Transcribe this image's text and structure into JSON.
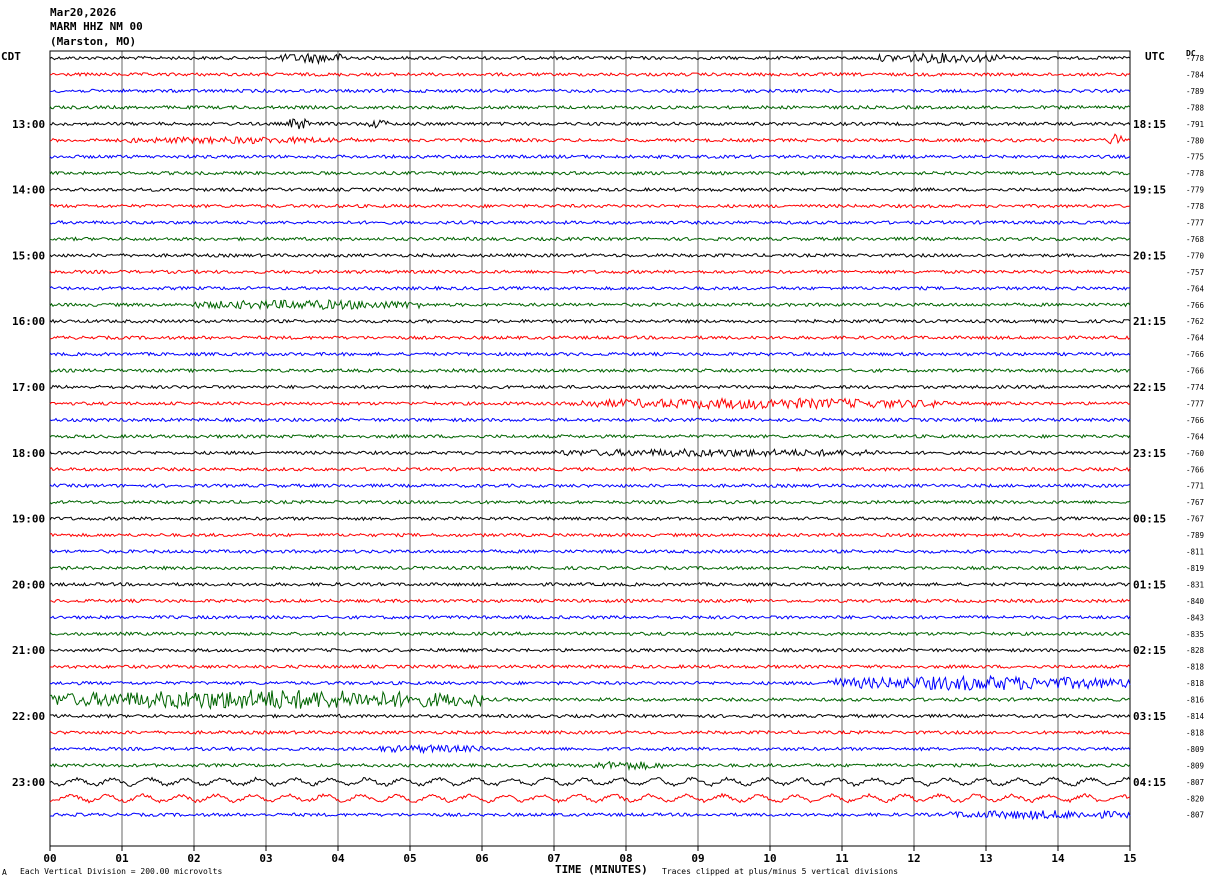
{
  "header": {
    "date": "Mar20,2026",
    "station": "MARM HHZ NM 00",
    "location": "(Marston, MO)"
  },
  "left_zone_label": "CDT",
  "right_zone_label": "UTC",
  "dc_label": "DC",
  "footer": {
    "scale": "Each Vertical Division =  200.00 microvolts",
    "clip": "Traces clipped at plus/minus 5 vertical divisions",
    "corner_mark": "A"
  },
  "chart_data": {
    "type": "line",
    "title": "",
    "xlabel": "TIME (MINUTES)",
    "xlim": [
      0,
      15
    ],
    "x_ticks": [
      "00",
      "01",
      "02",
      "03",
      "04",
      "05",
      "06",
      "07",
      "08",
      "09",
      "10",
      "11",
      "12",
      "13",
      "14",
      "15"
    ],
    "trace_colors": [
      "#000000",
      "#ff0000",
      "#0000ff",
      "#006400"
    ],
    "left_hour_labels": [
      "13:00",
      "14:00",
      "15:00",
      "16:00",
      "17:00",
      "18:00",
      "19:00",
      "20:00",
      "21:00",
      "22:00",
      "23:00"
    ],
    "right_hour_labels": [
      "18:15",
      "19:15",
      "20:15",
      "21:15",
      "22:15",
      "23:15",
      "00:15",
      "01:15",
      "02:15",
      "03:15",
      "04:15"
    ],
    "dc_offsets": [
      -778,
      -784,
      -789,
      -788,
      -791,
      -780,
      -775,
      -778,
      -779,
      -778,
      -777,
      -768,
      -770,
      -757,
      -764,
      -766,
      -762,
      -764,
      -766,
      -766,
      -774,
      -777,
      -766,
      -764,
      -760,
      -766,
      -771,
      -767,
      -767,
      -789,
      -811,
      -819,
      -831,
      -840,
      -843,
      -835,
      -828,
      -818,
      -818,
      -816,
      -814,
      -818,
      -809,
      -809,
      -807,
      -820,
      -807
    ],
    "traces": 47,
    "first_labeled_trace": 4,
    "traces_per_hour": 4
  }
}
